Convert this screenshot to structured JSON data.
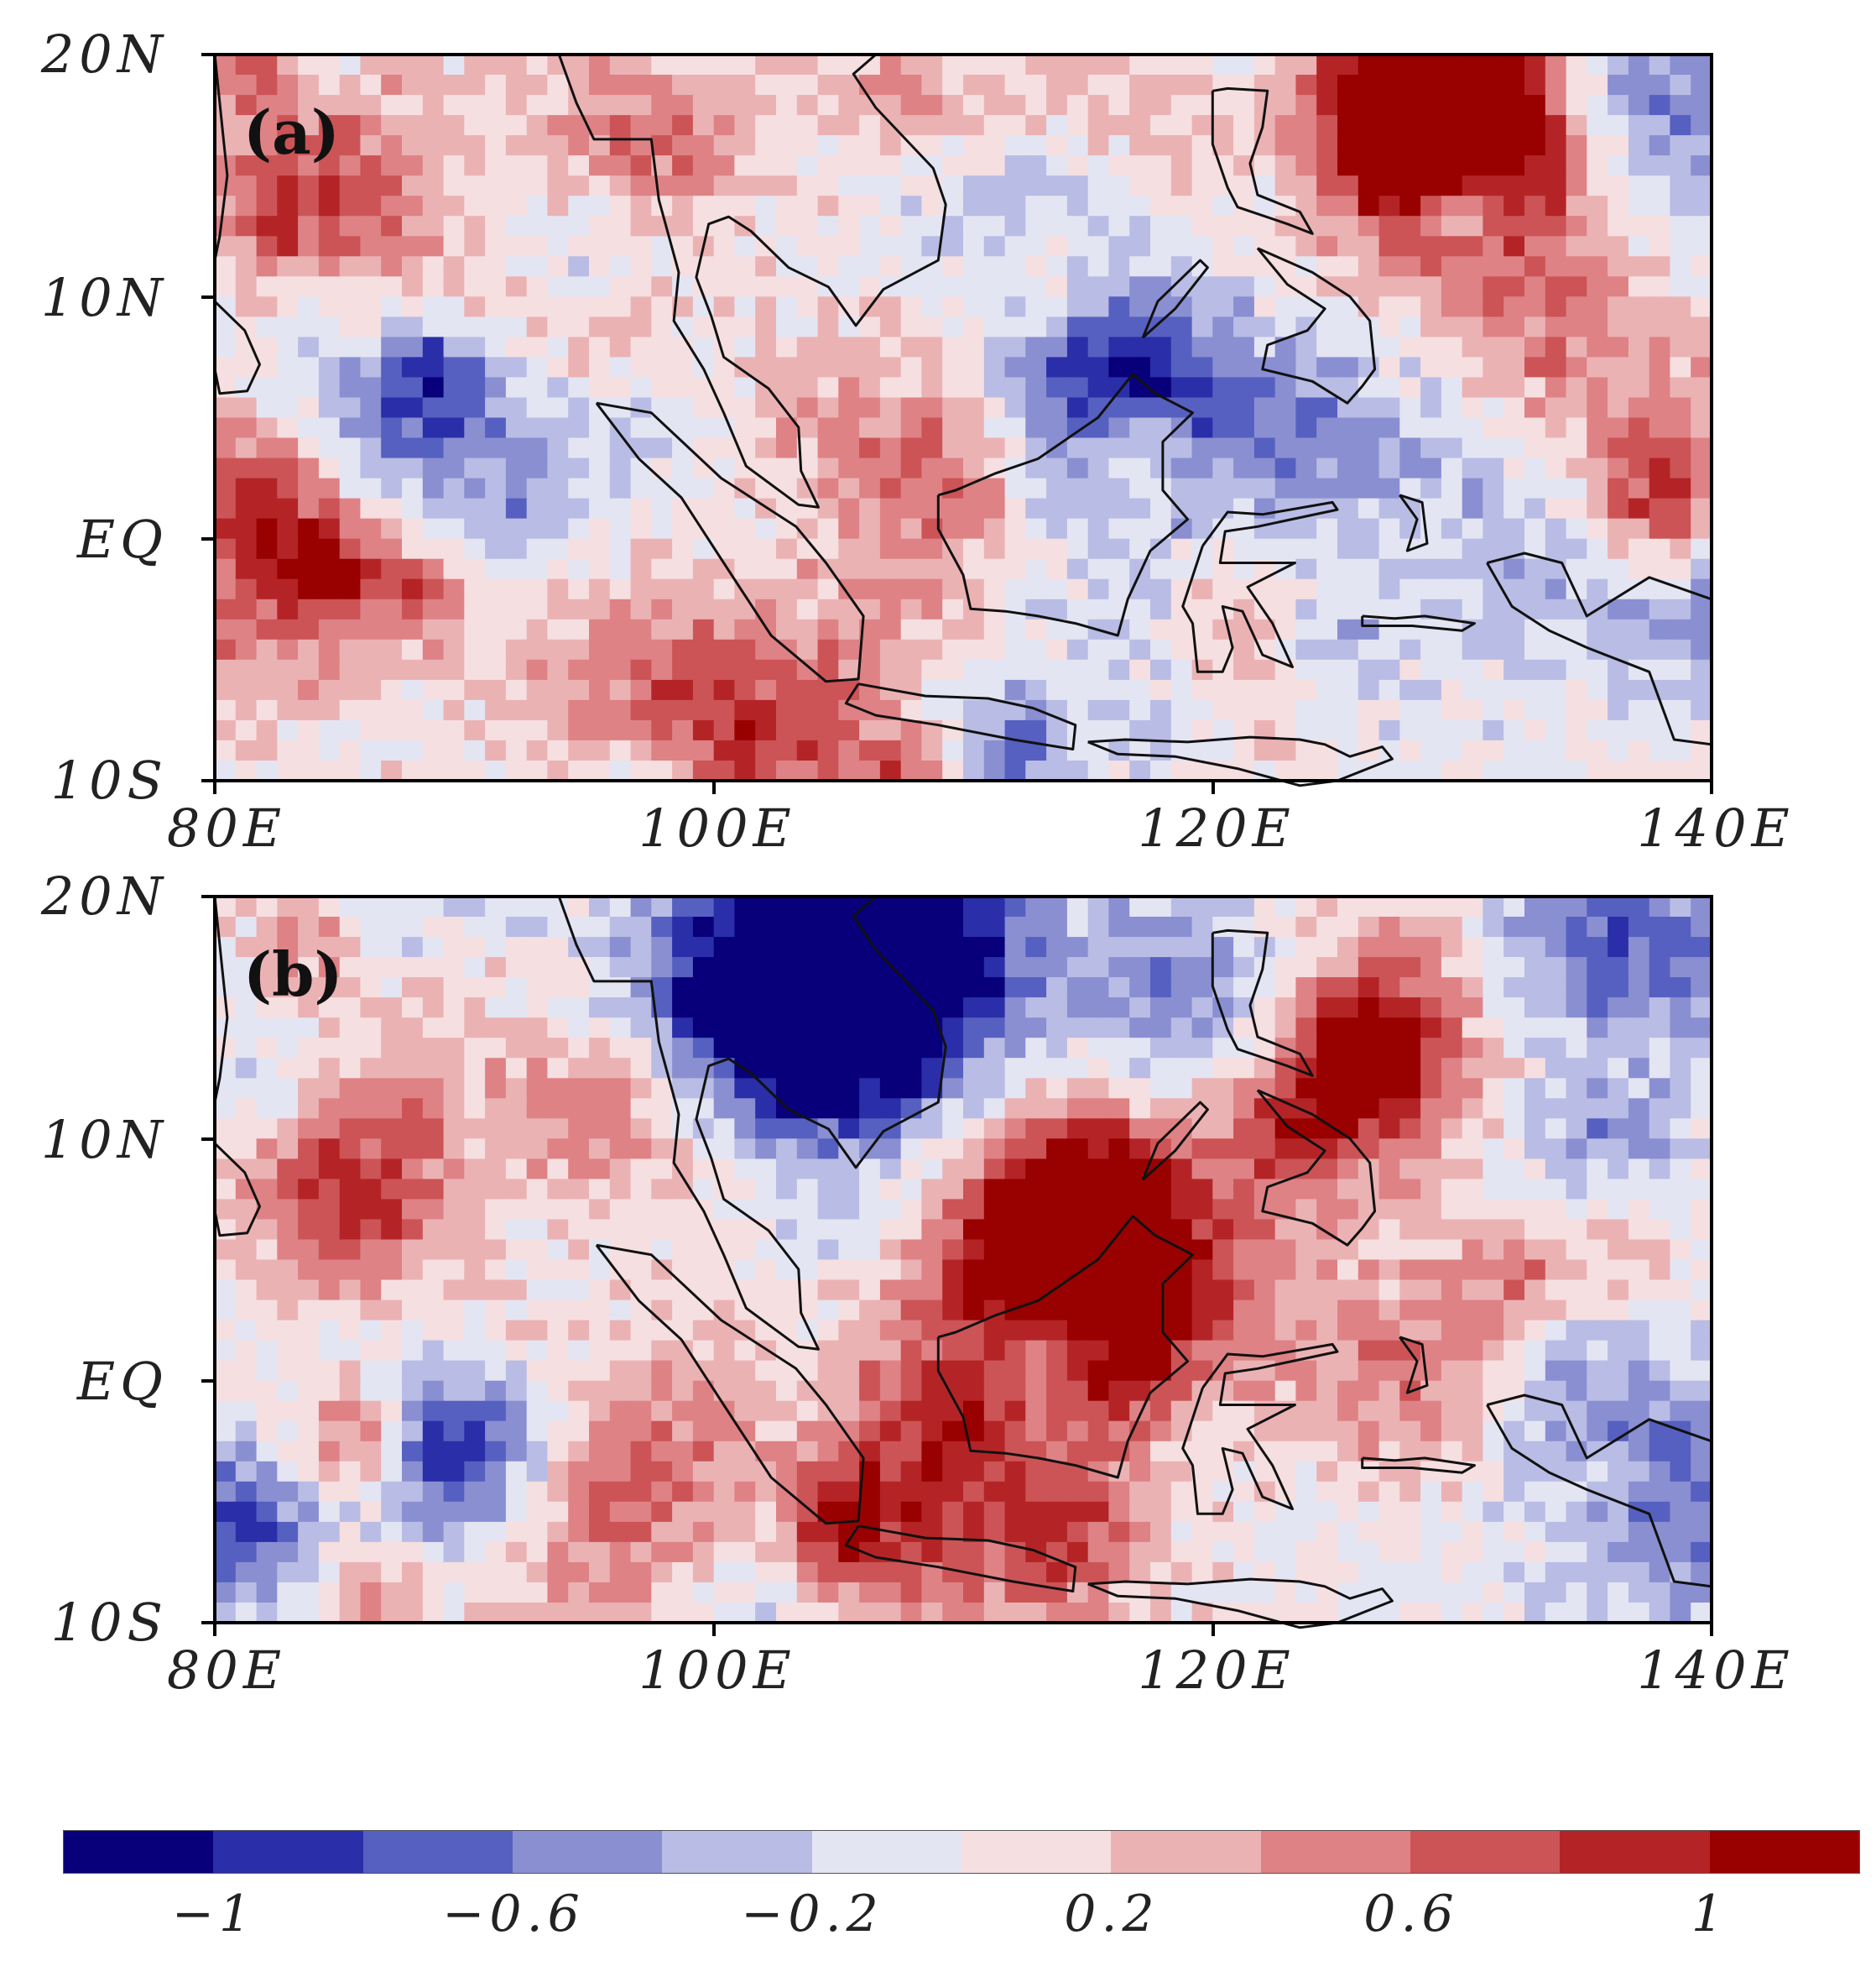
{
  "panels": [
    {
      "label": "(a)",
      "seed": 11
    },
    {
      "label": "(b)",
      "seed": 29
    }
  ],
  "axes": {
    "y_ticks": [
      "20N",
      "10N",
      "EQ",
      "10S"
    ],
    "x_ticks": [
      "80E",
      "100E",
      "120E",
      "140E"
    ]
  },
  "colorbar": {
    "labels": [
      "−1",
      "−0.6",
      "−0.2",
      "0.2",
      "0.6",
      "1"
    ],
    "colors": [
      "#08007a",
      "#2a2ea8",
      "#5660c0",
      "#8a8fd2",
      "#b9bce4",
      "#e4e5f3",
      "#f6dfe0",
      "#ebb2b4",
      "#de8285",
      "#cc5456",
      "#b42426",
      "#990000"
    ]
  },
  "map": {
    "coastline_color": "#111111",
    "frame_color": "#000000"
  }
}
